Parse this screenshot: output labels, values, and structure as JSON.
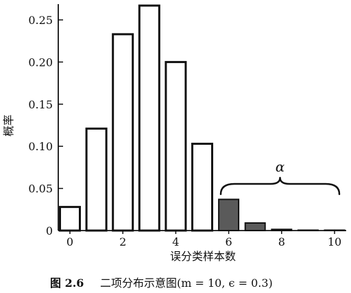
{
  "chart_data": {
    "type": "bar",
    "x": [
      0,
      1,
      2,
      3,
      4,
      5,
      6,
      7,
      8,
      9,
      10
    ],
    "values": [
      0.028,
      0.121,
      0.233,
      0.267,
      0.2,
      0.103,
      0.037,
      0.009,
      0.0014,
      0.0001,
      0.0
    ],
    "highlight_from_x": 6,
    "ylabel": "概率",
    "xlabel": "误分类样本数",
    "x_ticks": [
      "0",
      "2",
      "4",
      "6",
      "8",
      "10"
    ],
    "y_ticks": [
      "0",
      "0.05",
      "0.10",
      "0.15",
      "0.20",
      "0.25"
    ],
    "ylim": [
      0,
      0.27
    ],
    "xlim": [
      -0.5,
      10.5
    ],
    "annotation": "α",
    "caption_label": "图 2.6",
    "caption_text": "二项分布示意图(m = 10, ϵ = 0.3)",
    "colors": {
      "bar_fill": "#ffffff",
      "highlight_fill": "#5a5a5a",
      "stroke": "#111111"
    }
  }
}
